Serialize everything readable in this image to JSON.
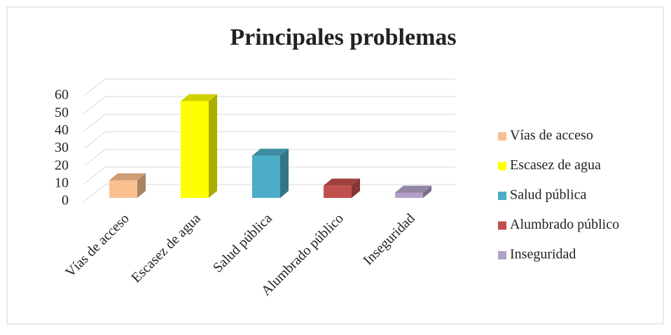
{
  "chart_data": {
    "type": "bar3d",
    "title": "Principales problemas",
    "categories": [
      "Vías de acceso",
      "Escasez de agua",
      "Salud pública",
      "Alumbrado público",
      "Inseguridad"
    ],
    "values": [
      10,
      55,
      24,
      7,
      3
    ],
    "colors": [
      "#fac090",
      "#ffff00",
      "#4bacc6",
      "#c0504d",
      "#b3a2c7"
    ],
    "ylim": [
      0,
      60
    ],
    "yticks": [
      0,
      10,
      20,
      30,
      40,
      50,
      60
    ],
    "grid": true,
    "legend": "right"
  }
}
